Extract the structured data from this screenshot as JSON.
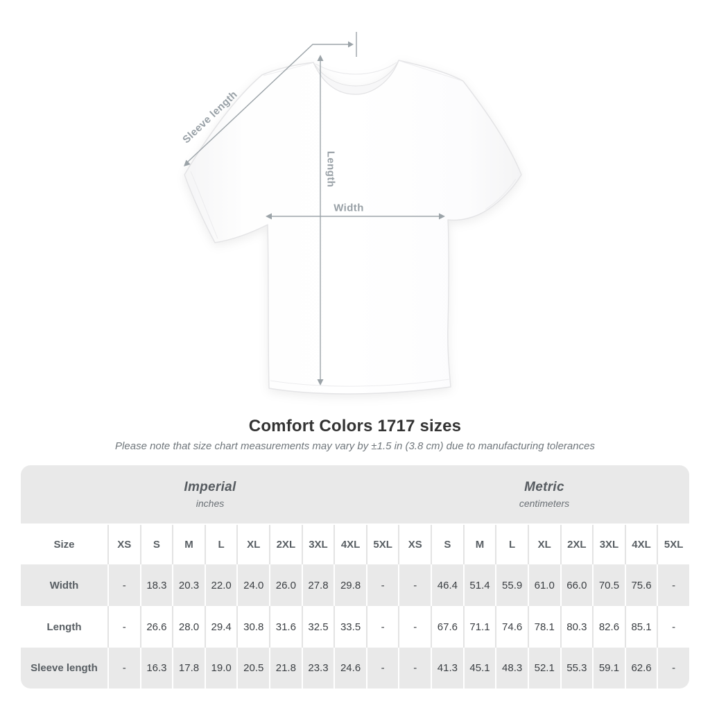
{
  "title": "Comfort Colors 1717 sizes",
  "subtitle": "Please note that size chart measurements may vary by ±1.5 in (3.8 cm) due to manufacturing tolerances",
  "diagram": {
    "sleeve_length_label": "Sleeve length",
    "length_label": "Length",
    "width_label": "Width"
  },
  "table": {
    "unit_groups": [
      {
        "system": "Imperial",
        "unit": "inches"
      },
      {
        "system": "Metric",
        "unit": "centimeters"
      }
    ],
    "size_label": "Size",
    "sizes": [
      "XS",
      "S",
      "M",
      "L",
      "XL",
      "2XL",
      "3XL",
      "4XL",
      "5XL"
    ],
    "rows": [
      {
        "label": "Width",
        "imperial": [
          "-",
          "18.3",
          "20.3",
          "22.0",
          "24.0",
          "26.0",
          "27.8",
          "29.8",
          "-"
        ],
        "metric": [
          "-",
          "46.4",
          "51.4",
          "55.9",
          "61.0",
          "66.0",
          "70.5",
          "75.6",
          "-"
        ]
      },
      {
        "label": "Length",
        "imperial": [
          "-",
          "26.6",
          "28.0",
          "29.4",
          "30.8",
          "31.6",
          "32.5",
          "33.5",
          "-"
        ],
        "metric": [
          "-",
          "67.6",
          "71.1",
          "74.6",
          "78.1",
          "80.3",
          "82.6",
          "85.1",
          "-"
        ]
      },
      {
        "label": "Sleeve length",
        "imperial": [
          "-",
          "16.3",
          "17.8",
          "19.0",
          "20.5",
          "21.8",
          "23.3",
          "24.6",
          "-"
        ],
        "metric": [
          "-",
          "41.3",
          "45.1",
          "48.3",
          "52.1",
          "55.3",
          "59.1",
          "62.6",
          "-"
        ]
      }
    ]
  },
  "colors": {
    "band_gray": "#e9e9e9",
    "separator_gray": "#e3e3e3",
    "annotation_gray": "#98a0a6",
    "title_text": "#333333",
    "subtitle_text": "#70777c",
    "header_text": "#585e63",
    "value_text": "#3a3e42"
  }
}
